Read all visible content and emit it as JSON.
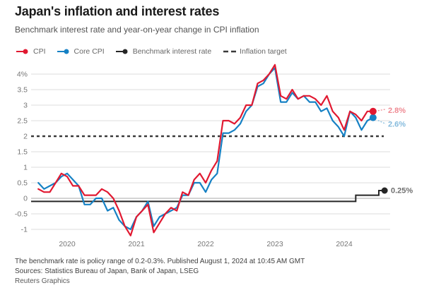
{
  "header": {
    "title": "Japan's inflation and interest rates",
    "subtitle": "Benchmark interest rate and year-on-year change in CPI inflation"
  },
  "legend": {
    "items": [
      {
        "label": "CPI",
        "color": "#e11931",
        "marker": "line-dot"
      },
      {
        "label": "Core CPI",
        "color": "#1681c4",
        "marker": "line-dot"
      },
      {
        "label": "Benchmark interest rate",
        "color": "#262626",
        "marker": "line-dot"
      },
      {
        "label": "Inflation target",
        "color": "#3a3a3a",
        "marker": "dashes"
      }
    ]
  },
  "chart_data": {
    "type": "line",
    "frequency": "monthly",
    "x_start": "2019-08",
    "x_end": "2024-06",
    "ylim": [
      -1,
      4
    ],
    "yticks": [
      "4%",
      "3.5",
      "3",
      "2.5",
      "2",
      "1.5",
      "1",
      "0.5",
      "0",
      "-0.5",
      "-1"
    ],
    "ytick_values": [
      4,
      3.5,
      3,
      2.5,
      2,
      1.5,
      1,
      0.5,
      0,
      -0.5,
      -1
    ],
    "xticks": [
      {
        "label": "2020",
        "at": "2020-01"
      },
      {
        "label": "2021",
        "at": "2021-01"
      },
      {
        "label": "2022",
        "at": "2022-01"
      },
      {
        "label": "2023",
        "at": "2023-01"
      },
      {
        "label": "2024",
        "at": "2024-01"
      }
    ],
    "series": [
      {
        "name": "CPI",
        "color": "#e11931",
        "values": [
          0.3,
          0.2,
          0.2,
          0.5,
          0.8,
          0.7,
          0.4,
          0.4,
          0.1,
          0.1,
          0.1,
          0.3,
          0.2,
          0.0,
          -0.4,
          -0.9,
          -1.2,
          -0.6,
          -0.4,
          -0.2,
          -1.1,
          -0.8,
          -0.5,
          -0.3,
          -0.4,
          0.2,
          0.1,
          0.6,
          0.8,
          0.5,
          0.9,
          1.2,
          2.5,
          2.5,
          2.4,
          2.6,
          3.0,
          3.0,
          3.7,
          3.8,
          4.0,
          4.3,
          3.3,
          3.2,
          3.5,
          3.2,
          3.3,
          3.3,
          3.2,
          3.0,
          3.3,
          2.8,
          2.6,
          2.2,
          2.8,
          2.7,
          2.5,
          2.8,
          2.8
        ]
      },
      {
        "name": "Core CPI",
        "color": "#1681c4",
        "values": [
          0.5,
          0.3,
          0.4,
          0.5,
          0.7,
          0.8,
          0.6,
          0.4,
          -0.2,
          -0.2,
          0.0,
          0.0,
          -0.4,
          -0.3,
          -0.7,
          -0.9,
          -1.0,
          -0.6,
          -0.4,
          -0.1,
          -0.9,
          -0.6,
          -0.5,
          -0.4,
          -0.3,
          0.1,
          0.1,
          0.5,
          0.5,
          0.2,
          0.6,
          0.8,
          2.1,
          2.1,
          2.2,
          2.4,
          2.8,
          3.0,
          3.6,
          3.7,
          4.0,
          4.2,
          3.1,
          3.1,
          3.4,
          3.2,
          3.3,
          3.1,
          3.1,
          2.8,
          2.9,
          2.5,
          2.3,
          2.0,
          2.8,
          2.6,
          2.2,
          2.5,
          2.6
        ]
      }
    ],
    "benchmark_rate": {
      "name": "Benchmark interest rate",
      "color": "#262626",
      "steps": [
        {
          "start": "2019-08",
          "value": -0.1
        },
        {
          "start": "2024-03",
          "value": 0.1
        },
        {
          "start": "2024-07",
          "value": 0.25
        }
      ],
      "end": "2024-08"
    },
    "inflation_target": {
      "value": 2,
      "color": "#3a3a3a"
    },
    "annotations": [
      {
        "text": "2.8%",
        "series": "CPI",
        "color": "#ef8a93"
      },
      {
        "text": "2.6%",
        "series": "Core CPI",
        "color": "#85bbdd"
      },
      {
        "text": "0.25%",
        "series": "Benchmark interest rate",
        "color": "#6f6f6f"
      }
    ],
    "grid": {
      "color": "#dedede",
      "zero_color": "#a8a8a8"
    }
  },
  "footer": {
    "note": "The benchmark rate is policy range of 0.2-0.3%. Published August 1, 2024 at 10:45 AM GMT",
    "sources": "Sources: Statistics Bureau of Japan, Bank of Japan, LSEG",
    "credit": "Reuters Graphics"
  }
}
